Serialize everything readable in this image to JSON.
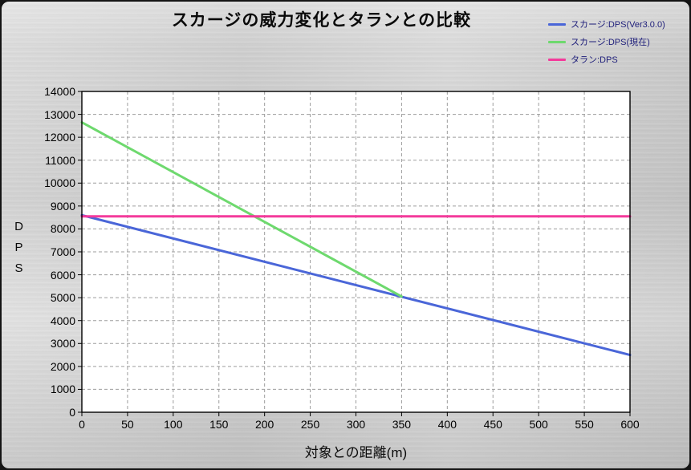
{
  "chart_data": {
    "type": "line",
    "title": "スカージの威力変化とタランとの比較",
    "xlabel": "対象との距離(m)",
    "ylabel": "DPS",
    "xlim": [
      0,
      600
    ],
    "ylim": [
      0,
      14000
    ],
    "xtick_step": 50,
    "ytick_step": 1000,
    "grid": true,
    "grid_style": "dashed",
    "legend_position": "top-right",
    "plot_background": "#ffffff",
    "series": [
      {
        "name": "スカージ:DPS(Ver3.0.0)",
        "color": "#4a66d8",
        "points": [
          [
            0,
            8600
          ],
          [
            600,
            2500
          ]
        ]
      },
      {
        "name": "スカージ:DPS(現在)",
        "color": "#6ed96e",
        "points": [
          [
            0,
            12650
          ],
          [
            350,
            5050
          ]
        ]
      },
      {
        "name": "タラン:DPS",
        "color": "#f43a9b",
        "points": [
          [
            0,
            8550
          ],
          [
            600,
            8550
          ]
        ]
      }
    ]
  }
}
